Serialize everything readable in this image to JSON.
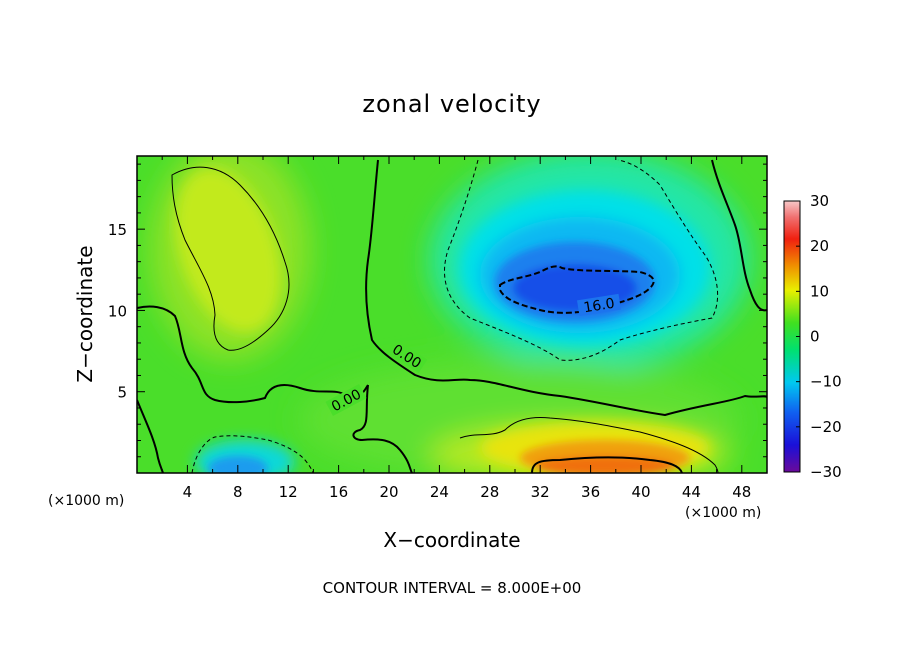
{
  "chart_data": {
    "type": "heatmap",
    "title": "zonal velocity",
    "xlabel": "X−coordinate",
    "ylabel": "Z−coordinate",
    "x_unit_left": "(×1000 m)",
    "x_unit_right": "(×1000 m)",
    "xlim": [
      0,
      50
    ],
    "ylim": [
      0,
      19.5
    ],
    "x_ticks": [
      "4",
      "8",
      "12",
      "16",
      "20",
      "24",
      "28",
      "32",
      "36",
      "40",
      "44",
      "48"
    ],
    "y_ticks": [
      "5",
      "10",
      "15"
    ],
    "colorbar": {
      "range": [
        -30,
        30
      ],
      "ticks": [
        "30",
        "20",
        "10",
        "0",
        "−10",
        "−20",
        "−30"
      ]
    },
    "contour_labels": [
      "0.00",
      "0.00",
      "16.0"
    ],
    "features": [
      {
        "x": 8,
        "z": 13,
        "value": 9
      },
      {
        "x": 36,
        "z": 12,
        "value": -16
      },
      {
        "x": 36,
        "z": 1.5,
        "value": 18
      },
      {
        "x": 8,
        "z": 1,
        "value": -10
      }
    ],
    "footer": "CONTOUR INTERVAL = 8.000E+00"
  }
}
